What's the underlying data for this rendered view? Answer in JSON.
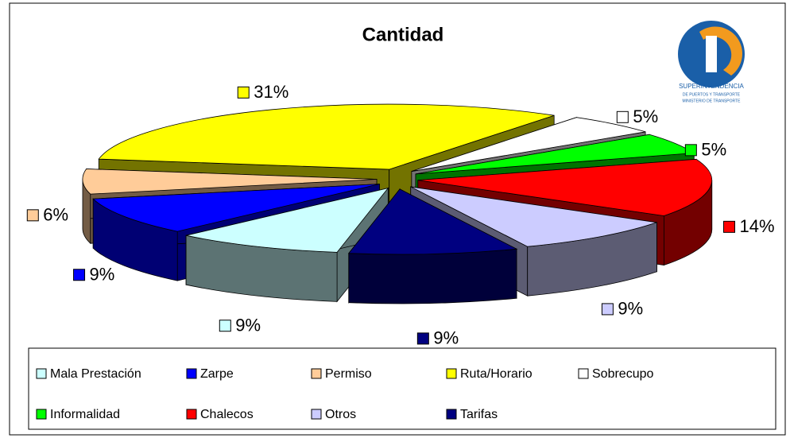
{
  "chart_data": {
    "type": "pie3d",
    "title": "Cantidad",
    "categories": [
      "Mala Prestación",
      "Zarpe",
      "Permiso",
      "Ruta/Horario",
      "Sobrecupo",
      "Informalidad",
      "Chalecos",
      "Otros",
      "Tarifas"
    ],
    "values": [
      9,
      9,
      6,
      31,
      5,
      5,
      14,
      9,
      9
    ],
    "value_labels": [
      "9%",
      "9%",
      "6%",
      "31%",
      "5%",
      "5%",
      "14%",
      "9%",
      "9%"
    ],
    "colors": [
      "#ccffff",
      "#0000ff",
      "#ffcc99",
      "#ffff00",
      "#ffffff",
      "#00ff00",
      "#ff0000",
      "#ccccff",
      "#000080"
    ],
    "legend": "bottom"
  },
  "logo": {
    "lines": [
      "SUPERINTENDENCIA",
      "DE PUERTOS Y TRANSPORTE",
      "MINISTERIO DE TRANSPORTE"
    ]
  }
}
